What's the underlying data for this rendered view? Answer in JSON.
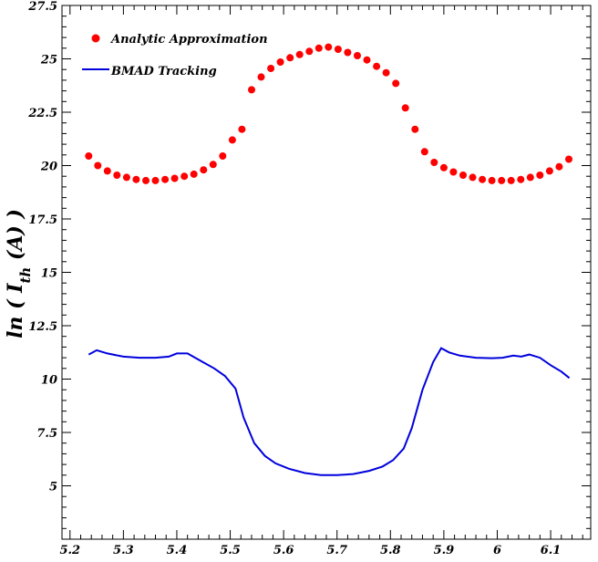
{
  "chart_data": {
    "type": "scatter",
    "title": "",
    "xlabel": "",
    "ylabel": "ln ( I_th (A) )",
    "ylabel_parts": {
      "prefix": "ln ( ",
      "main": "I",
      "sub": "th",
      "suffix": " (A) )"
    },
    "xlim": [
      5.185,
      6.175
    ],
    "ylim": [
      2.5,
      27.5
    ],
    "xticks": [
      5.2,
      5.3,
      5.4,
      5.5,
      5.6,
      5.7,
      5.8,
      5.9,
      6.0,
      6.1
    ],
    "xtick_labels": [
      "5.2",
      "5.3",
      "5.4",
      "5.5",
      "5.6",
      "5.7",
      "5.8",
      "5.9",
      "6",
      "6.1"
    ],
    "yticks": [
      5,
      7.5,
      10,
      12.5,
      15,
      17.5,
      20,
      22.5,
      25,
      27.5
    ],
    "ytick_labels": [
      "5",
      "7.5",
      "10",
      "12.5",
      "15",
      "17.5",
      "20",
      "22.5",
      "25",
      "27.5"
    ],
    "grid": false,
    "legend_position": "top-left",
    "series": [
      {
        "name": "Analytic Approximation",
        "style": "markers",
        "color": "#ff0000",
        "x": [
          5.235,
          5.252,
          5.27,
          5.288,
          5.306,
          5.324,
          5.342,
          5.36,
          5.378,
          5.396,
          5.414,
          5.432,
          5.45,
          5.468,
          5.486,
          5.504,
          5.522,
          5.54,
          5.558,
          5.576,
          5.594,
          5.612,
          5.63,
          5.648,
          5.666,
          5.684,
          5.702,
          5.72,
          5.738,
          5.756,
          5.774,
          5.792,
          5.81,
          5.828,
          5.846,
          5.864,
          5.882,
          5.9,
          5.918,
          5.936,
          5.954,
          5.972,
          5.99,
          6.008,
          6.026,
          6.044,
          6.062,
          6.08,
          6.098,
          6.116,
          6.134
        ],
        "y": [
          20.45,
          20.0,
          19.75,
          19.55,
          19.45,
          19.35,
          19.3,
          19.3,
          19.35,
          19.4,
          19.5,
          19.6,
          19.8,
          20.05,
          20.45,
          21.2,
          21.7,
          23.55,
          24.15,
          24.55,
          24.85,
          25.05,
          25.2,
          25.35,
          25.5,
          25.55,
          25.45,
          25.3,
          25.15,
          24.95,
          24.65,
          24.35,
          23.85,
          22.7,
          21.7,
          20.65,
          20.15,
          19.9,
          19.7,
          19.55,
          19.45,
          19.35,
          19.3,
          19.3,
          19.3,
          19.35,
          19.45,
          19.55,
          19.75,
          19.95,
          20.3
        ]
      },
      {
        "name": "BMAD Tracking",
        "style": "line",
        "color": "#0000dd",
        "x": [
          5.235,
          5.25,
          5.27,
          5.3,
          5.33,
          5.36,
          5.385,
          5.4,
          5.42,
          5.445,
          5.47,
          5.49,
          5.51,
          5.525,
          5.545,
          5.565,
          5.585,
          5.61,
          5.64,
          5.67,
          5.7,
          5.73,
          5.76,
          5.785,
          5.805,
          5.825,
          5.84,
          5.86,
          5.88,
          5.895,
          5.91,
          5.93,
          5.96,
          5.99,
          6.01,
          6.03,
          6.045,
          6.06,
          6.08,
          6.1,
          6.12,
          6.135
        ],
        "y": [
          11.15,
          11.35,
          11.2,
          11.05,
          11.0,
          11.0,
          11.05,
          11.2,
          11.2,
          10.85,
          10.5,
          10.15,
          9.55,
          8.2,
          7.0,
          6.4,
          6.05,
          5.8,
          5.6,
          5.5,
          5.5,
          5.55,
          5.7,
          5.9,
          6.2,
          6.75,
          7.7,
          9.5,
          10.8,
          11.45,
          11.25,
          11.1,
          11.0,
          10.98,
          11.0,
          11.1,
          11.05,
          11.15,
          11.0,
          10.65,
          10.35,
          10.05
        ]
      }
    ]
  }
}
